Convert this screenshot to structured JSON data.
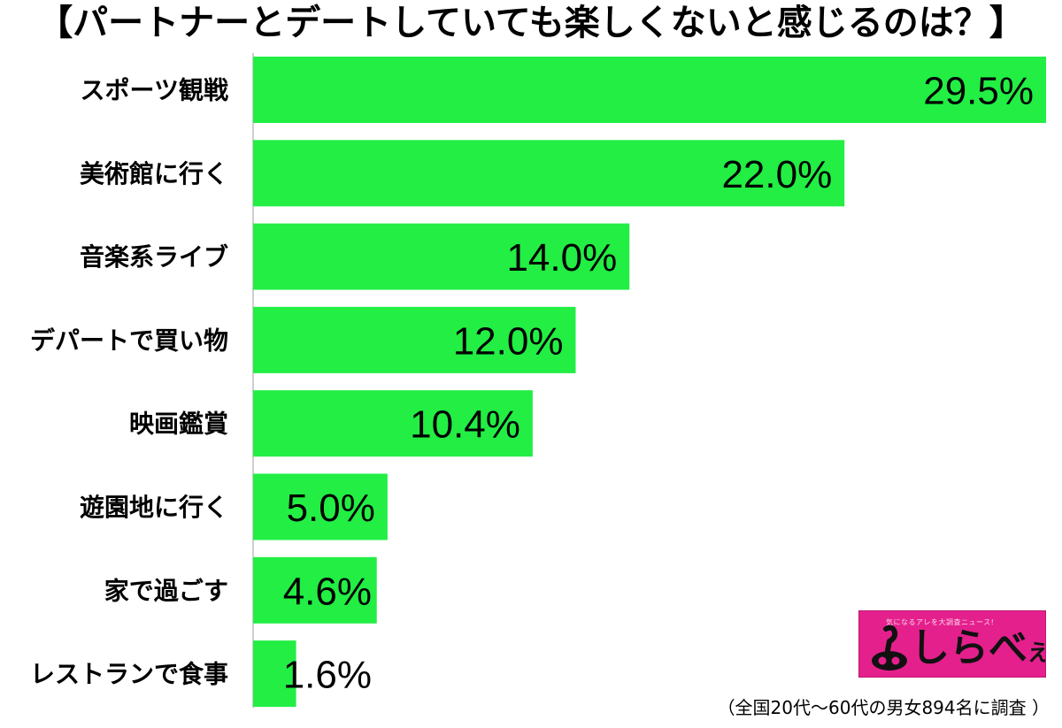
{
  "title": "【パートナーとデートしていても楽しくないと感じるのは？】",
  "chart_data": {
    "type": "bar",
    "orientation": "horizontal",
    "categories": [
      "スポーツ観戦",
      "美術館に行く",
      "音楽系ライブ",
      "デパートで買い物",
      "映画鑑賞",
      "遊園地に行く",
      "家で過ごす",
      "レストランで食事"
    ],
    "values": [
      29.5,
      22.0,
      14.0,
      12.0,
      10.4,
      5.0,
      4.6,
      1.6
    ],
    "value_labels": [
      "29.5%",
      "22.0%",
      "14.0%",
      "12.0%",
      "10.4%",
      "5.0%",
      "4.6%",
      "1.6%"
    ],
    "unit": "%",
    "bar_color": "#22ee44",
    "xlim": [
      0,
      29.5
    ],
    "grid": false,
    "legend": "none"
  },
  "footnote": "（全国20代〜60代の男女894名に調査 ）",
  "logo": {
    "wordmark_main": "しらべ",
    "wordmark_suffix": "え",
    "tagline": "気になるアレを大調査ニュース!",
    "background": "#e4208d"
  }
}
